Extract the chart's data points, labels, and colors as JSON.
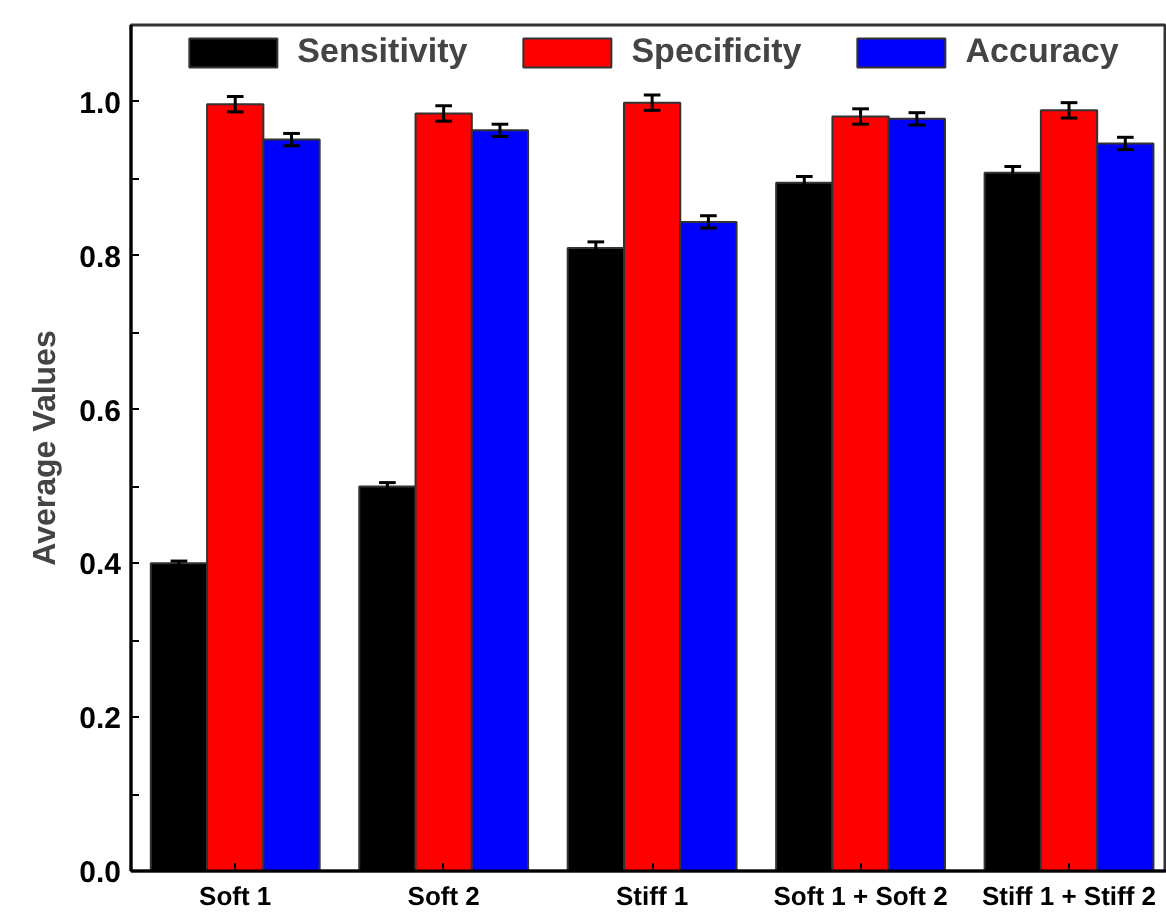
{
  "chart_data": {
    "type": "bar",
    "ylabel": "Average Values",
    "categories": [
      "Soft 1",
      "Soft 2",
      "Stiff 1",
      "Soft 1 + Soft 2",
      "Stiff 1 + Stiff 2"
    ],
    "series": [
      {
        "name": "Sensitivity",
        "color": "#000000",
        "values": [
          0.4,
          0.5,
          0.81,
          0.895,
          0.908
        ],
        "errors": [
          0.003,
          0.005,
          0.008,
          0.008,
          0.008
        ]
      },
      {
        "name": "Specificity",
        "color": "#ff0000",
        "values": [
          0.997,
          0.985,
          0.999,
          0.981,
          0.989
        ],
        "errors": [
          0.01,
          0.01,
          0.01,
          0.01,
          0.01
        ]
      },
      {
        "name": "Accuracy",
        "color": "#0000ff",
        "values": [
          0.951,
          0.963,
          0.844,
          0.978,
          0.946
        ],
        "errors": [
          0.008,
          0.008,
          0.008,
          0.008,
          0.008
        ]
      }
    ],
    "ylim": [
      0,
      1.1
    ],
    "yticks": [
      {
        "value": 0.0,
        "label": "0.0"
      },
      {
        "value": 0.1,
        "label": null
      },
      {
        "value": 0.2,
        "label": "0.2"
      },
      {
        "value": 0.3,
        "label": null
      },
      {
        "value": 0.4,
        "label": "0.4"
      },
      {
        "value": 0.5,
        "label": null
      },
      {
        "value": 0.6,
        "label": "0.6"
      },
      {
        "value": 0.7,
        "label": null
      },
      {
        "value": 0.8,
        "label": "0.8"
      },
      {
        "value": 0.9,
        "label": null
      },
      {
        "value": 1.0,
        "label": "1.0"
      }
    ],
    "legend": "top",
    "grid": false
  }
}
